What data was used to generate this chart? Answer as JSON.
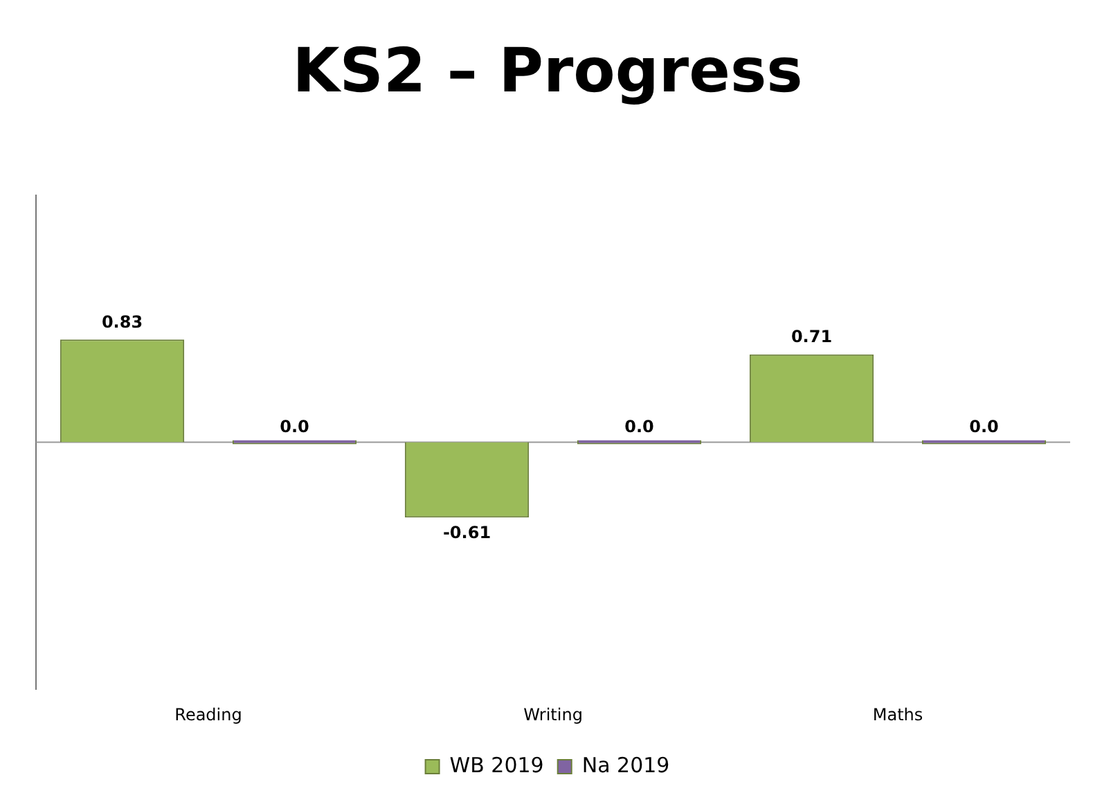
{
  "chart_data": {
    "type": "bar",
    "title": "KS2 – Progress",
    "categories": [
      "Reading",
      "Writing",
      "Maths"
    ],
    "series": [
      {
        "name": "WB 2019",
        "color": "#9bbb59",
        "values": [
          0.83,
          -0.61,
          0.71
        ],
        "value_labels": [
          "0.83",
          "-0.61",
          "0.71"
        ]
      },
      {
        "name": "Na 2019",
        "color": "#8064a2",
        "values": [
          0,
          0,
          0
        ],
        "value_labels": [
          "0.0",
          "0.0",
          "0.0"
        ]
      }
    ],
    "ylim": [
      -2,
      2
    ],
    "grid": false,
    "legend": "bottom",
    "data_labels": true
  }
}
